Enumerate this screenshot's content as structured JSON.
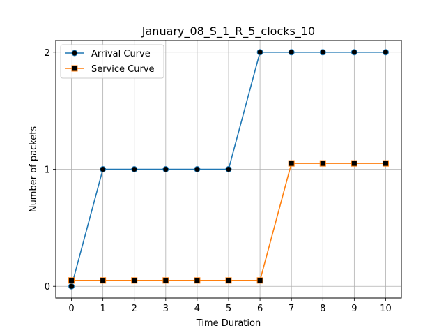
{
  "chart_data": {
    "type": "line",
    "title": "January_08_S_1_R_5_clocks_10",
    "xlabel": "Time Duration",
    "ylabel": "Number of packets",
    "x": [
      0,
      1,
      2,
      3,
      4,
      5,
      6,
      7,
      8,
      9,
      10
    ],
    "xlim": [
      -0.5,
      10.5
    ],
    "ylim": [
      -0.1,
      2.1
    ],
    "xticks": [
      "0",
      "1",
      "2",
      "3",
      "4",
      "5",
      "6",
      "7",
      "8",
      "9",
      "10"
    ],
    "yticks": [
      {
        "value": 0,
        "label": "0"
      },
      {
        "value": 1,
        "label": "1"
      },
      {
        "value": 2,
        "label": "2"
      }
    ],
    "grid": true,
    "legend_position": "top-left",
    "series": [
      {
        "name": "Arrival Curve",
        "values": [
          0,
          1,
          1,
          1,
          1,
          1,
          2,
          2,
          2,
          2,
          2
        ],
        "color": "#1f77b4",
        "marker": "circle",
        "marker_fill": "#000000"
      },
      {
        "name": "Service Curve",
        "values": [
          0.05,
          0.05,
          0.05,
          0.05,
          0.05,
          0.05,
          0.05,
          1.05,
          1.05,
          1.05,
          1.05
        ],
        "color": "#ff7f0e",
        "marker": "square",
        "marker_fill": "#000000"
      }
    ]
  }
}
